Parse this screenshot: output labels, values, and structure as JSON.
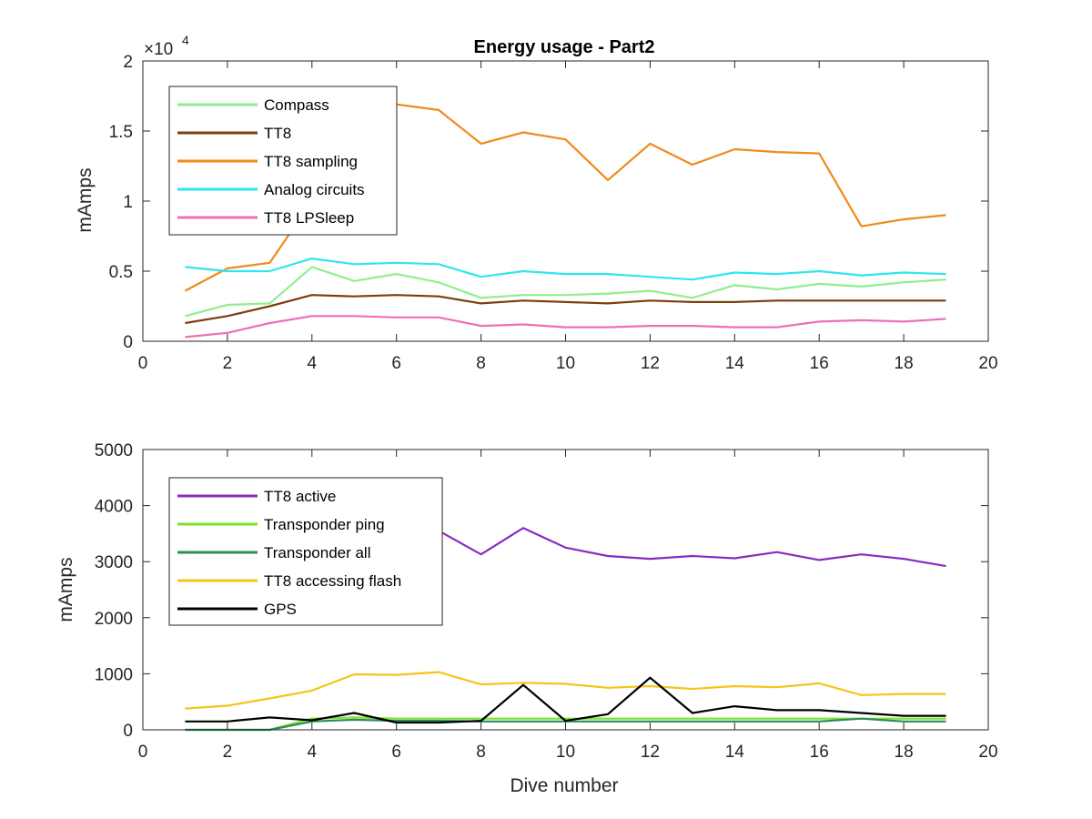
{
  "chart_data": [
    {
      "type": "line",
      "title": "Energy usage - Part2",
      "xlabel": "",
      "ylabel": "mAmps",
      "xlim": [
        0,
        20
      ],
      "ylim": [
        0,
        20000
      ],
      "xticks": [
        0,
        2,
        4,
        6,
        8,
        10,
        12,
        14,
        16,
        18,
        20
      ],
      "xtick_labels": [
        "0",
        "2",
        "4",
        "6",
        "8",
        "10",
        "12",
        "14",
        "16",
        "18",
        "20"
      ],
      "yticks": [
        0,
        5000,
        10000,
        15000,
        20000
      ],
      "ytick_labels": [
        "0",
        "0.5",
        "1",
        "1.5",
        "2"
      ],
      "exponent_label": "×10",
      "exponent_power": "4",
      "grid": false,
      "legend_position": "top-left",
      "x": [
        1,
        2,
        3,
        4,
        5,
        6,
        7,
        8,
        9,
        10,
        11,
        12,
        13,
        14,
        15,
        16,
        17,
        18,
        19
      ],
      "series": [
        {
          "name": "Compass",
          "color": "#90EE90",
          "values": [
            1800,
            2600,
            2700,
            5300,
            4300,
            4800,
            4200,
            3100,
            3300,
            3300,
            3400,
            3600,
            3100,
            4000,
            3700,
            4100,
            3900,
            4200,
            4400
          ]
        },
        {
          "name": "TT8",
          "color": "#7B3F10",
          "values": [
            1300,
            1800,
            2500,
            3300,
            3200,
            3300,
            3200,
            2700,
            2900,
            2800,
            2700,
            2900,
            2800,
            2800,
            2900,
            2900,
            2900,
            2900,
            2900
          ]
        },
        {
          "name": "TT8 sampling",
          "color": "#F08A1C",
          "values": [
            3600,
            5200,
            5600,
            10000,
            16500,
            16900,
            16500,
            14100,
            14900,
            14400,
            11500,
            14100,
            12600,
            13700,
            13500,
            13400,
            8200,
            8700,
            9000
          ]
        },
        {
          "name": "Analog circuits",
          "color": "#2EE6F0",
          "values": [
            5300,
            5000,
            5000,
            5900,
            5500,
            5600,
            5500,
            4600,
            5000,
            4800,
            4800,
            4600,
            4400,
            4900,
            4800,
            5000,
            4700,
            4900,
            4800
          ]
        },
        {
          "name": "TT8 LPSleep",
          "color": "#F06EB4",
          "values": [
            300,
            600,
            1300,
            1800,
            1800,
            1700,
            1700,
            1100,
            1200,
            1000,
            1000,
            1100,
            1100,
            1000,
            1000,
            1400,
            1500,
            1400,
            1600
          ]
        }
      ]
    },
    {
      "type": "line",
      "title": "",
      "xlabel": "Dive number",
      "ylabel": "mAmps",
      "xlim": [
        0,
        20
      ],
      "ylim": [
        0,
        5000
      ],
      "xticks": [
        0,
        2,
        4,
        6,
        8,
        10,
        12,
        14,
        16,
        18,
        20
      ],
      "xtick_labels": [
        "0",
        "2",
        "4",
        "6",
        "8",
        "10",
        "12",
        "14",
        "16",
        "18",
        "20"
      ],
      "yticks": [
        0,
        1000,
        2000,
        3000,
        4000,
        5000
      ],
      "ytick_labels": [
        "0",
        "1000",
        "2000",
        "3000",
        "4000",
        "5000"
      ],
      "grid": false,
      "legend_position": "top-left",
      "x": [
        1,
        2,
        3,
        4,
        5,
        6,
        7,
        8,
        9,
        10,
        11,
        12,
        13,
        14,
        15,
        16,
        17,
        18,
        19
      ],
      "series": [
        {
          "name": "TT8 active",
          "color": "#8A2BC2",
          "values": [
            2800,
            3200,
            3300,
            3600,
            3700,
            3800,
            3550,
            3130,
            3600,
            3250,
            3100,
            3050,
            3100,
            3060,
            3170,
            3030,
            3130,
            3050,
            2920
          ]
        },
        {
          "name": "Transponder ping",
          "color": "#7CE22E",
          "values": [
            0,
            0,
            0,
            200,
            220,
            200,
            200,
            200,
            200,
            200,
            200,
            200,
            200,
            200,
            200,
            200,
            200,
            200,
            200
          ]
        },
        {
          "name": "Transponder all",
          "color": "#2E8B57",
          "values": [
            0,
            0,
            0,
            150,
            180,
            160,
            160,
            150,
            150,
            150,
            150,
            150,
            150,
            150,
            150,
            150,
            200,
            150,
            150
          ]
        },
        {
          "name": "TT8 accessing flash",
          "color": "#F5C518",
          "values": [
            380,
            430,
            560,
            700,
            990,
            980,
            1030,
            810,
            840,
            820,
            750,
            780,
            730,
            780,
            760,
            830,
            620,
            640,
            640
          ]
        },
        {
          "name": "GPS",
          "color": "#000000",
          "values": [
            150,
            150,
            220,
            170,
            300,
            130,
            130,
            160,
            800,
            160,
            280,
            930,
            300,
            420,
            350,
            350,
            300,
            250,
            250
          ]
        }
      ]
    }
  ]
}
